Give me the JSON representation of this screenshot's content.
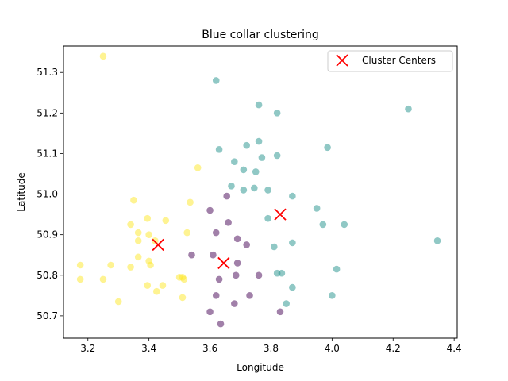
{
  "chart_data": {
    "type": "scatter",
    "title": "Blue collar clustering",
    "xlabel": "Longitude",
    "ylabel": "Latitude",
    "xlim": [
      3.12,
      4.41
    ],
    "ylim": [
      50.645,
      51.365
    ],
    "xticks": [
      3.2,
      3.4,
      3.6,
      3.8,
      4.0,
      4.2,
      4.4
    ],
    "xtick_labels": [
      "3.2",
      "3.4",
      "3.6",
      "3.8",
      "4.0",
      "4.2",
      "4.4"
    ],
    "yticks": [
      50.7,
      50.8,
      50.9,
      51.0,
      51.1,
      51.2,
      51.3
    ],
    "ytick_labels": [
      "50.7",
      "50.8",
      "50.9",
      "51.0",
      "51.1",
      "51.2",
      "51.3"
    ],
    "grid": false,
    "legend": {
      "placement": "top-right",
      "entries": [
        "Cluster Centers"
      ]
    },
    "colors": {
      "cluster_purple": "#440154",
      "cluster_teal": "#21918c",
      "cluster_yellow": "#fde725",
      "center": "#ff0000"
    },
    "series": [
      {
        "cluster": 0,
        "color": "#440154",
        "points": [
          [
            3.54,
            50.85
          ],
          [
            3.61,
            50.85
          ],
          [
            3.62,
            50.905
          ],
          [
            3.66,
            50.93
          ],
          [
            3.69,
            50.89
          ],
          [
            3.72,
            50.875
          ],
          [
            3.76,
            50.8
          ],
          [
            3.63,
            50.79
          ],
          [
            3.62,
            50.75
          ],
          [
            3.68,
            50.73
          ],
          [
            3.6,
            50.96
          ],
          [
            3.655,
            50.995
          ],
          [
            3.69,
            50.83
          ],
          [
            3.685,
            50.8
          ],
          [
            3.73,
            50.75
          ],
          [
            3.6,
            50.71
          ],
          [
            3.635,
            50.68
          ],
          [
            3.83,
            50.71
          ]
        ]
      },
      {
        "cluster": 1,
        "color": "#21918c",
        "points": [
          [
            3.62,
            51.28
          ],
          [
            3.76,
            51.22
          ],
          [
            3.82,
            51.2
          ],
          [
            4.25,
            51.21
          ],
          [
            3.63,
            51.11
          ],
          [
            3.72,
            51.12
          ],
          [
            3.76,
            51.13
          ],
          [
            3.77,
            51.09
          ],
          [
            3.82,
            51.095
          ],
          [
            3.985,
            51.115
          ],
          [
            3.68,
            51.08
          ],
          [
            3.71,
            51.06
          ],
          [
            3.75,
            51.055
          ],
          [
            3.67,
            51.02
          ],
          [
            3.71,
            51.01
          ],
          [
            3.745,
            51.015
          ],
          [
            3.79,
            51.01
          ],
          [
            3.87,
            50.995
          ],
          [
            3.95,
            50.965
          ],
          [
            3.79,
            50.94
          ],
          [
            3.97,
            50.925
          ],
          [
            4.04,
            50.925
          ],
          [
            3.87,
            50.88
          ],
          [
            3.81,
            50.87
          ],
          [
            4.345,
            50.885
          ],
          [
            3.82,
            50.805
          ],
          [
            3.835,
            50.805
          ],
          [
            4.015,
            50.815
          ],
          [
            3.87,
            50.77
          ],
          [
            3.85,
            50.73
          ],
          [
            4.0,
            50.75
          ]
        ]
      },
      {
        "cluster": 2,
        "color": "#fde725",
        "points": [
          [
            3.25,
            51.34
          ],
          [
            3.56,
            51.065
          ],
          [
            3.35,
            50.985
          ],
          [
            3.535,
            50.98
          ],
          [
            3.395,
            50.94
          ],
          [
            3.455,
            50.935
          ],
          [
            3.34,
            50.925
          ],
          [
            3.365,
            50.905
          ],
          [
            3.4,
            50.9
          ],
          [
            3.525,
            50.905
          ],
          [
            3.365,
            50.885
          ],
          [
            3.42,
            50.885
          ],
          [
            3.365,
            50.845
          ],
          [
            3.4,
            50.835
          ],
          [
            3.275,
            50.825
          ],
          [
            3.175,
            50.825
          ],
          [
            3.34,
            50.82
          ],
          [
            3.405,
            50.825
          ],
          [
            3.445,
            50.775
          ],
          [
            3.395,
            50.775
          ],
          [
            3.51,
            50.795
          ],
          [
            3.5,
            50.795
          ],
          [
            3.515,
            50.79
          ],
          [
            3.175,
            50.79
          ],
          [
            3.25,
            50.79
          ],
          [
            3.425,
            50.76
          ],
          [
            3.3,
            50.735
          ],
          [
            3.51,
            50.745
          ]
        ]
      }
    ],
    "cluster_centers": {
      "name": "Cluster Centers",
      "points": [
        [
          3.43,
          50.875
        ],
        [
          3.645,
          50.83
        ],
        [
          3.83,
          50.95
        ]
      ]
    }
  }
}
